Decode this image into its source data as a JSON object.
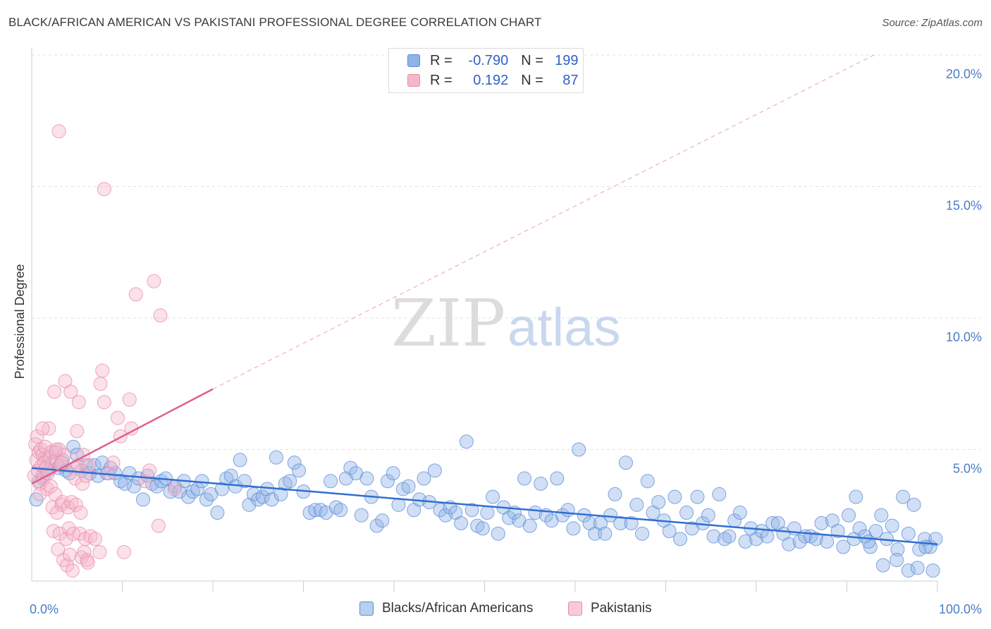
{
  "title": "BLACK/AFRICAN AMERICAN VS PAKISTANI PROFESSIONAL DEGREE CORRELATION CHART",
  "source": "Source: ZipAtlas.com",
  "watermark": {
    "zip": "ZIP",
    "atlas": "atlas"
  },
  "legend": {
    "rows": [
      {
        "r_label": "R =",
        "r_value": "-0.790",
        "n_label": "N =",
        "n_value": "199",
        "color": "#8fb3e8",
        "border": "#5b8ad6"
      },
      {
        "r_label": "R =",
        "r_value": "0.192",
        "n_label": "N =",
        "n_value": "87",
        "color": "#f5b8cb",
        "border": "#e98aa7"
      }
    ]
  },
  "bottom_legend": [
    {
      "label": "Blacks/African Americans",
      "color": "#b7cff1",
      "border": "#5b8ad6"
    },
    {
      "label": "Pakistanis",
      "color": "#f8cad8",
      "border": "#e98aa7"
    }
  ],
  "chart_data": {
    "type": "scatter",
    "ylabel": "Professional Degree",
    "xlim": [
      0,
      100
    ],
    "ylim": [
      0,
      20
    ],
    "y_ticks": [
      {
        "value": 5,
        "label": "5.0%"
      },
      {
        "value": 10,
        "label": "10.0%"
      },
      {
        "value": 15,
        "label": "15.0%"
      },
      {
        "value": 20,
        "label": "20.0%"
      }
    ],
    "x_tick_labels": [
      {
        "value": 0,
        "label": "0.0%"
      },
      {
        "value": 100,
        "label": "100.0%"
      }
    ],
    "x_minor_ticks": [
      10,
      20,
      30,
      40,
      50,
      60,
      70,
      80,
      90,
      100
    ],
    "grid": "horizontal dashed",
    "series": [
      {
        "name": "Blacks/African Americans",
        "color": "#8fb3e8",
        "edge": "#5b8ad6",
        "trend": {
          "x": [
            0,
            100
          ],
          "y": [
            4.3,
            1.4
          ],
          "color": "#2f6fd1"
        },
        "points": [
          [
            0.5,
            3.1
          ],
          [
            0.8,
            3.8
          ],
          [
            1.2,
            4.0
          ],
          [
            1.5,
            4.7
          ],
          [
            1.8,
            4.2
          ],
          [
            2.2,
            4.5
          ],
          [
            2.6,
            4.9
          ],
          [
            3.0,
            4.3
          ],
          [
            3.4,
            4.6
          ],
          [
            3.8,
            4.2
          ],
          [
            4.2,
            4.1
          ],
          [
            4.6,
            5.1
          ],
          [
            5.0,
            4.8
          ],
          [
            5.5,
            4.2
          ],
          [
            6.0,
            4.4
          ],
          [
            6.4,
            4.1
          ],
          [
            6.9,
            4.4
          ],
          [
            7.3,
            4.0
          ],
          [
            7.8,
            4.5
          ],
          [
            8.3,
            4.1
          ],
          [
            8.7,
            4.3
          ],
          [
            9.2,
            4.1
          ],
          [
            9.8,
            3.8
          ],
          [
            10.3,
            3.7
          ],
          [
            10.8,
            4.1
          ],
          [
            11.3,
            3.6
          ],
          [
            11.8,
            3.9
          ],
          [
            12.3,
            3.1
          ],
          [
            12.8,
            4.0
          ],
          [
            13.3,
            3.7
          ],
          [
            13.8,
            3.6
          ],
          [
            14.3,
            3.8
          ],
          [
            14.8,
            3.9
          ],
          [
            15.3,
            3.4
          ],
          [
            15.8,
            3.6
          ],
          [
            16.3,
            3.4
          ],
          [
            16.8,
            3.8
          ],
          [
            17.3,
            3.2
          ],
          [
            17.8,
            3.4
          ],
          [
            18.3,
            3.5
          ],
          [
            18.8,
            3.8
          ],
          [
            19.3,
            3.1
          ],
          [
            19.8,
            3.3
          ],
          [
            20.5,
            2.6
          ],
          [
            21.0,
            3.5
          ],
          [
            21.5,
            3.9
          ],
          [
            22.0,
            4.0
          ],
          [
            22.5,
            3.6
          ],
          [
            23.0,
            4.6
          ],
          [
            23.5,
            3.8
          ],
          [
            24.0,
            2.9
          ],
          [
            24.5,
            3.3
          ],
          [
            25.0,
            3.1
          ],
          [
            25.5,
            3.2
          ],
          [
            26.0,
            3.5
          ],
          [
            26.5,
            3.1
          ],
          [
            27.0,
            4.7
          ],
          [
            27.5,
            3.3
          ],
          [
            28.0,
            3.7
          ],
          [
            28.5,
            3.8
          ],
          [
            29.0,
            4.5
          ],
          [
            29.5,
            4.2
          ],
          [
            30.0,
            3.4
          ],
          [
            30.7,
            2.6
          ],
          [
            31.3,
            2.7
          ],
          [
            31.9,
            2.7
          ],
          [
            32.5,
            2.6
          ],
          [
            33.0,
            3.8
          ],
          [
            33.6,
            2.8
          ],
          [
            34.1,
            2.7
          ],
          [
            34.7,
            3.9
          ],
          [
            35.2,
            4.3
          ],
          [
            35.8,
            4.1
          ],
          [
            36.4,
            2.5
          ],
          [
            37.0,
            3.9
          ],
          [
            37.5,
            3.2
          ],
          [
            38.1,
            2.1
          ],
          [
            38.7,
            2.3
          ],
          [
            39.3,
            3.8
          ],
          [
            39.9,
            4.1
          ],
          [
            40.5,
            2.9
          ],
          [
            41.0,
            3.5
          ],
          [
            41.6,
            3.6
          ],
          [
            42.2,
            2.7
          ],
          [
            42.8,
            3.1
          ],
          [
            43.3,
            3.9
          ],
          [
            43.9,
            3.0
          ],
          [
            44.5,
            4.2
          ],
          [
            45.1,
            2.7
          ],
          [
            45.7,
            2.5
          ],
          [
            46.2,
            2.8
          ],
          [
            46.8,
            2.6
          ],
          [
            47.4,
            2.2
          ],
          [
            48.0,
            5.3
          ],
          [
            48.6,
            2.7
          ],
          [
            49.2,
            2.1
          ],
          [
            49.8,
            2.0
          ],
          [
            50.3,
            2.6
          ],
          [
            50.9,
            3.2
          ],
          [
            51.5,
            1.8
          ],
          [
            52.1,
            2.8
          ],
          [
            52.7,
            2.4
          ],
          [
            53.3,
            2.6
          ],
          [
            53.8,
            2.3
          ],
          [
            54.4,
            3.9
          ],
          [
            55.0,
            2.1
          ],
          [
            55.6,
            2.6
          ],
          [
            56.2,
            3.7
          ],
          [
            56.8,
            2.5
          ],
          [
            57.4,
            2.3
          ],
          [
            58.0,
            3.9
          ],
          [
            58.6,
            2.5
          ],
          [
            59.2,
            2.7
          ],
          [
            59.8,
            2.0
          ],
          [
            60.4,
            5.0
          ],
          [
            61.0,
            2.5
          ],
          [
            61.6,
            2.2
          ],
          [
            62.2,
            1.8
          ],
          [
            62.8,
            2.2
          ],
          [
            63.3,
            1.8
          ],
          [
            63.9,
            2.5
          ],
          [
            64.4,
            3.3
          ],
          [
            65.0,
            2.2
          ],
          [
            65.6,
            4.5
          ],
          [
            66.2,
            2.2
          ],
          [
            66.8,
            2.9
          ],
          [
            67.4,
            1.8
          ],
          [
            68.0,
            3.8
          ],
          [
            68.6,
            2.6
          ],
          [
            69.2,
            3.0
          ],
          [
            69.8,
            2.3
          ],
          [
            70.4,
            1.9
          ],
          [
            71.0,
            3.2
          ],
          [
            71.6,
            1.6
          ],
          [
            72.3,
            2.6
          ],
          [
            72.9,
            2.0
          ],
          [
            73.5,
            3.2
          ],
          [
            74.1,
            2.2
          ],
          [
            74.7,
            2.5
          ],
          [
            75.3,
            1.7
          ],
          [
            75.9,
            3.3
          ],
          [
            76.5,
            1.6
          ],
          [
            77.0,
            1.7
          ],
          [
            77.6,
            2.3
          ],
          [
            78.2,
            2.6
          ],
          [
            78.8,
            1.5
          ],
          [
            79.4,
            2.0
          ],
          [
            80.0,
            1.6
          ],
          [
            80.6,
            1.9
          ],
          [
            81.2,
            1.7
          ],
          [
            81.8,
            2.2
          ],
          [
            82.4,
            2.2
          ],
          [
            83.0,
            1.8
          ],
          [
            83.6,
            1.4
          ],
          [
            84.2,
            2.0
          ],
          [
            84.8,
            1.5
          ],
          [
            85.4,
            1.7
          ],
          [
            86.0,
            1.7
          ],
          [
            86.6,
            1.6
          ],
          [
            87.2,
            2.2
          ],
          [
            87.8,
            1.5
          ],
          [
            88.4,
            2.3
          ],
          [
            89.0,
            1.9
          ],
          [
            89.6,
            1.3
          ],
          [
            90.2,
            2.5
          ],
          [
            90.8,
            1.6
          ],
          [
            91.4,
            2.0
          ],
          [
            92.0,
            1.7
          ],
          [
            92.6,
            1.3
          ],
          [
            93.2,
            1.9
          ],
          [
            93.8,
            2.5
          ],
          [
            94.4,
            1.6
          ],
          [
            95.0,
            2.1
          ],
          [
            95.6,
            1.2
          ],
          [
            96.2,
            3.2
          ],
          [
            96.8,
            1.8
          ],
          [
            97.4,
            2.9
          ],
          [
            98.0,
            1.2
          ],
          [
            98.6,
            1.6
          ],
          [
            99.2,
            1.3
          ],
          [
            99.8,
            1.6
          ],
          [
            91.0,
            3.2
          ],
          [
            92.4,
            1.5
          ],
          [
            94.0,
            0.6
          ],
          [
            95.5,
            0.8
          ],
          [
            96.8,
            0.4
          ],
          [
            97.8,
            0.5
          ],
          [
            98.7,
            1.3
          ],
          [
            99.5,
            0.4
          ]
        ]
      },
      {
        "name": "Pakistanis",
        "color": "#f5b8cb",
        "edge": "#e98aa7",
        "trend": {
          "x": [
            0,
            20
          ],
          "y": [
            3.7,
            7.3
          ],
          "color": "#e05f8c"
        },
        "trend_extension": {
          "x": [
            20,
            93
          ],
          "y": [
            7.3,
            20.0
          ]
        },
        "points": [
          [
            0.3,
            4.0
          ],
          [
            0.4,
            5.2
          ],
          [
            0.5,
            4.6
          ],
          [
            0.6,
            5.5
          ],
          [
            0.7,
            4.2
          ],
          [
            0.8,
            4.9
          ],
          [
            0.9,
            3.7
          ],
          [
            1.0,
            5.0
          ],
          [
            1.1,
            4.4
          ],
          [
            1.2,
            4.8
          ],
          [
            1.3,
            3.9
          ],
          [
            1.4,
            4.5
          ],
          [
            1.5,
            5.1
          ],
          [
            1.6,
            4.3
          ],
          [
            1.7,
            3.5
          ],
          [
            1.8,
            4.1
          ],
          [
            1.9,
            5.8
          ],
          [
            2.0,
            4.7
          ],
          [
            2.1,
            3.6
          ],
          [
            2.2,
            4.9
          ],
          [
            2.3,
            2.8
          ],
          [
            2.4,
            1.9
          ],
          [
            2.5,
            7.2
          ],
          [
            2.6,
            3.3
          ],
          [
            2.7,
            4.6
          ],
          [
            2.8,
            2.6
          ],
          [
            2.9,
            1.2
          ],
          [
            3.0,
            5.0
          ],
          [
            3.1,
            1.8
          ],
          [
            3.2,
            4.4
          ],
          [
            3.3,
            2.9
          ],
          [
            3.4,
            3.0
          ],
          [
            3.5,
            0.8
          ],
          [
            3.6,
            4.8
          ],
          [
            3.7,
            7.6
          ],
          [
            3.8,
            1.6
          ],
          [
            3.9,
            0.6
          ],
          [
            4.0,
            2.8
          ],
          [
            4.1,
            2.0
          ],
          [
            4.2,
            1.0
          ],
          [
            4.3,
            7.2
          ],
          [
            4.4,
            3.0
          ],
          [
            4.5,
            0.4
          ],
          [
            4.6,
            1.8
          ],
          [
            4.7,
            4.3
          ],
          [
            4.8,
            3.9
          ],
          [
            4.9,
            2.9
          ],
          [
            5.0,
            5.7
          ],
          [
            5.1,
            4.4
          ],
          [
            5.2,
            6.8
          ],
          [
            5.3,
            1.8
          ],
          [
            5.4,
            2.6
          ],
          [
            5.5,
            0.9
          ],
          [
            5.6,
            3.7
          ],
          [
            5.7,
            4.8
          ],
          [
            5.8,
            1.1
          ],
          [
            5.9,
            1.6
          ],
          [
            6.0,
            4.0
          ],
          [
            6.1,
            0.8
          ],
          [
            6.2,
            0.7
          ],
          [
            6.3,
            4.4
          ],
          [
            6.5,
            1.7
          ],
          [
            7.0,
            1.6
          ],
          [
            7.5,
            1.1
          ],
          [
            7.8,
            8.0
          ],
          [
            8.0,
            6.8
          ],
          [
            8.5,
            4.1
          ],
          [
            9.0,
            4.5
          ],
          [
            9.5,
            6.2
          ],
          [
            9.8,
            5.5
          ],
          [
            10.2,
            1.1
          ],
          [
            10.8,
            6.9
          ],
          [
            11.5,
            10.9
          ],
          [
            11.0,
            5.8
          ],
          [
            7.6,
            7.5
          ],
          [
            3.0,
            17.1
          ],
          [
            8.0,
            14.9
          ],
          [
            12.5,
            3.8
          ],
          [
            13.5,
            11.4
          ],
          [
            14.2,
            10.1
          ],
          [
            13.0,
            4.2
          ],
          [
            14.0,
            2.1
          ],
          [
            1.2,
            5.8
          ],
          [
            2.7,
            5.0
          ],
          [
            0.9,
            3.3
          ],
          [
            3.3,
            4.5
          ],
          [
            15.8,
            3.5
          ]
        ]
      }
    ]
  }
}
